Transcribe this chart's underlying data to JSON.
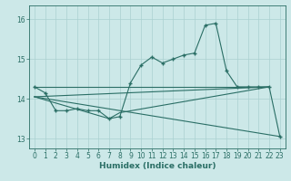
{
  "xlabel": "Humidex (Indice chaleur)",
  "bg_color": "#cce8e8",
  "grid_color": "#aad0d0",
  "line_color": "#2a6e65",
  "xlim": [
    -0.5,
    23.5
  ],
  "ylim": [
    12.75,
    16.35
  ],
  "yticks": [
    13,
    14,
    15,
    16
  ],
  "xticks": [
    0,
    1,
    2,
    3,
    4,
    5,
    6,
    7,
    8,
    9,
    10,
    11,
    12,
    13,
    14,
    15,
    16,
    17,
    18,
    19,
    20,
    21,
    22,
    23
  ],
  "line1_x": [
    0,
    1,
    2,
    3,
    4,
    5,
    6,
    7,
    8,
    9,
    10,
    11,
    12,
    13,
    14,
    15,
    16,
    17,
    18,
    19,
    20,
    21,
    22,
    23
  ],
  "line1_y": [
    14.3,
    14.15,
    13.7,
    13.7,
    13.75,
    13.7,
    13.7,
    13.5,
    13.55,
    14.4,
    14.85,
    15.05,
    14.9,
    15.0,
    15.1,
    15.15,
    15.85,
    15.9,
    14.7,
    14.3,
    14.3,
    14.3,
    14.3,
    13.05
  ],
  "line2_x": [
    0,
    22
  ],
  "line2_y": [
    14.3,
    14.3
  ],
  "line3_x": [
    0,
    22
  ],
  "line3_y": [
    14.05,
    14.3
  ],
  "line4_x": [
    0,
    7,
    8,
    22
  ],
  "line4_y": [
    14.05,
    13.5,
    13.65,
    14.3
  ],
  "line5_x": [
    0,
    23
  ],
  "line5_y": [
    14.05,
    13.05
  ]
}
